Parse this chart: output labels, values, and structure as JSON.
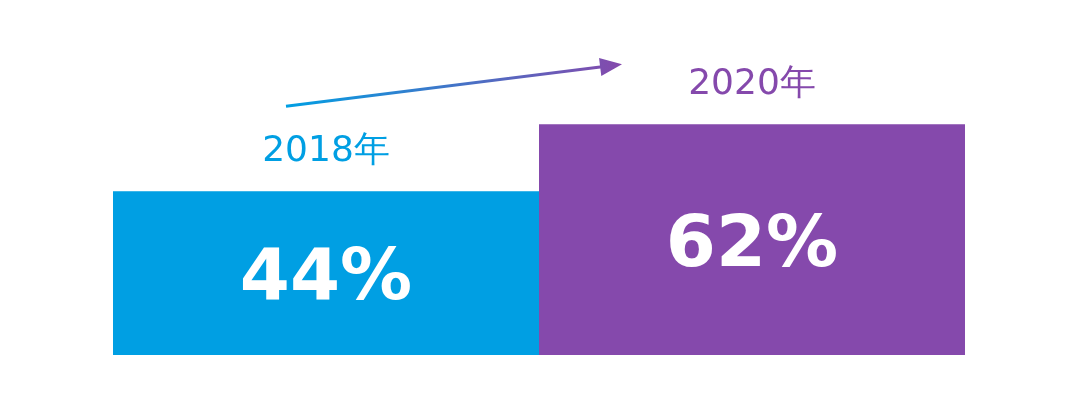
{
  "chart_data": {
    "type": "bar",
    "categories": [
      "2018年",
      "2020年"
    ],
    "values": [
      44,
      62
    ],
    "colors": [
      "#009fe3",
      "#8549ac"
    ],
    "value_labels": [
      "44%",
      "62%"
    ]
  }
}
